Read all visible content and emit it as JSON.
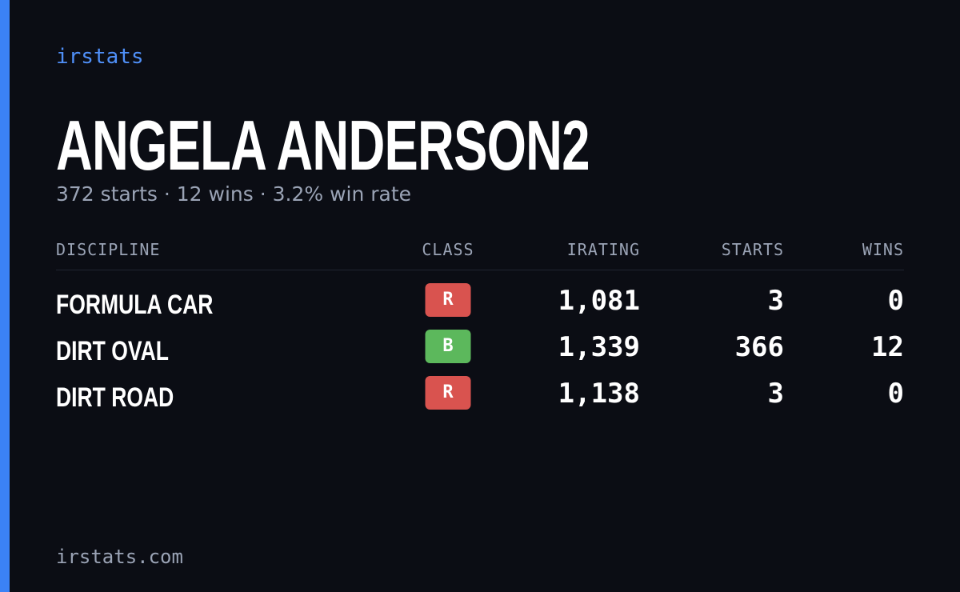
{
  "brand": "irstats",
  "title": "ANGELA ANDERSON2",
  "subtitle": "372 starts · 12 wins · 3.2% win rate",
  "table": {
    "columns": [
      "DISCIPLINE",
      "CLASS",
      "IRATING",
      "STARTS",
      "WINS"
    ],
    "rows": [
      [
        "FORMULA CAR",
        "R",
        "1,081",
        "3",
        "0"
      ],
      [
        "DIRT OVAL",
        "B",
        "1,339",
        "366",
        "12"
      ],
      [
        "DIRT ROAD",
        "R",
        "1,138",
        "3",
        "0"
      ]
    ]
  },
  "class_colors": {
    "R": "#d9534f",
    "B": "#5cb85c"
  },
  "footer": "irstats.com"
}
